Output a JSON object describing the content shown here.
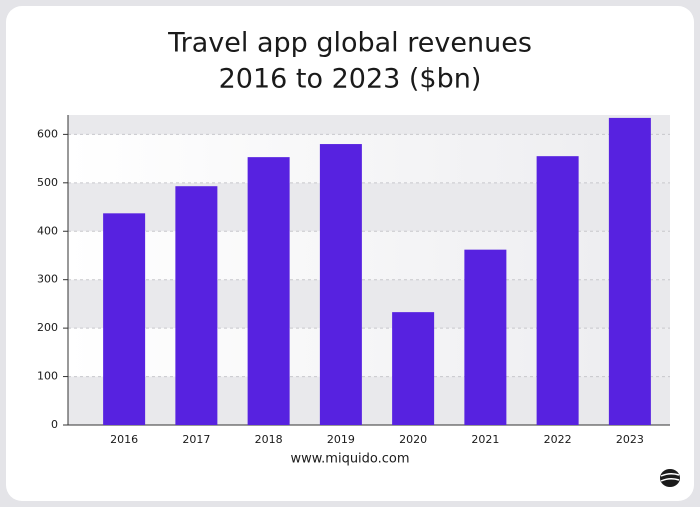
{
  "chart_data": {
    "type": "bar",
    "title": "Travel app global revenues",
    "subtitle": "2016 to 2023 ($bn)",
    "categories": [
      "2016",
      "2017",
      "2018",
      "2019",
      "2020",
      "2021",
      "2022",
      "2023"
    ],
    "values": [
      437,
      493,
      553,
      580,
      233,
      362,
      555,
      634
    ],
    "color": "#5722e0",
    "ylim": [
      0,
      640
    ],
    "yticks": [
      0,
      100,
      200,
      300,
      400,
      500,
      600
    ],
    "grid": true,
    "footer": "www.miquido.com"
  }
}
